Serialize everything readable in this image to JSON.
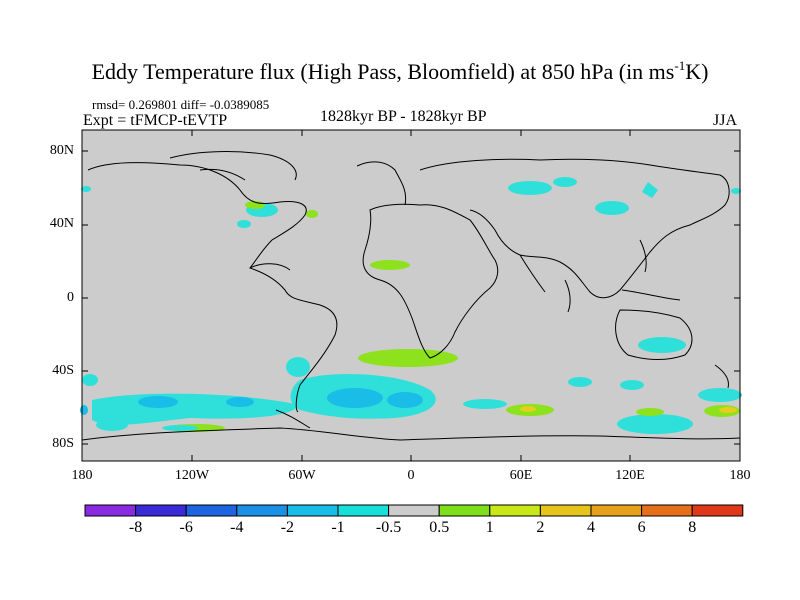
{
  "title": {
    "main": "Eddy Temperature flux (High Pass, Bloomfield) at 850 hPa (in ms",
    "superscript": "-1",
    "suffix": "K)"
  },
  "stats": "rmsd= 0.269801 diff= -0.0389085",
  "experiment": "Expt = tFMCP-tEVTP",
  "period": "1828kyr BP - 1828kyr BP",
  "season": "JJA",
  "axes": {
    "y_labels": [
      "80N",
      "40N",
      "0",
      "40S",
      "80S"
    ],
    "x_labels": [
      "180",
      "120W",
      "60W",
      "0",
      "60E",
      "120E",
      "180"
    ]
  },
  "colorbar": {
    "labels": [
      "-8",
      "-6",
      "-4",
      "-2",
      "-1",
      "-0.5",
      "0.5",
      "1",
      "2",
      "4",
      "6",
      "8"
    ],
    "colors": [
      "#8a2be2",
      "#3a2bd8",
      "#1e63e0",
      "#1a90e6",
      "#17bde8",
      "#18e0d8",
      "#cccccc",
      "#7ee01a",
      "#c8e81a",
      "#e6c41a",
      "#e6a01a",
      "#e66f1a",
      "#e0381a"
    ]
  },
  "map": {
    "land_color": "#000000",
    "background_color": "#cccccc",
    "colors": {
      "cyan": "#2fe0da",
      "light_blue": "#19bde8",
      "green": "#8ee11d",
      "yellow": "#e4cf1f"
    }
  }
}
